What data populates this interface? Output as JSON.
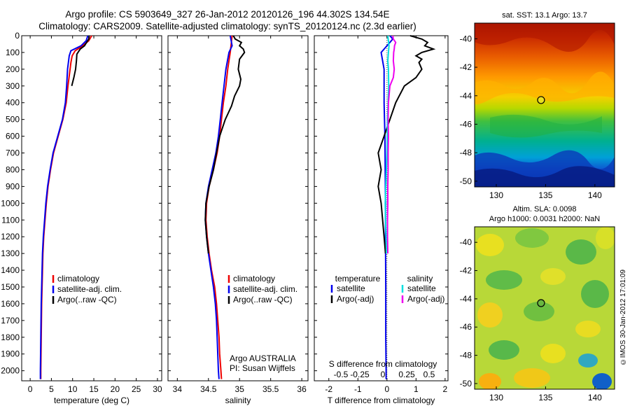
{
  "header": {
    "title": "Argo profile: CS 5903649_327 26-Jan-2012 20120126_196 44.302S 134.54E",
    "subtitle": "Climatology: CARS2009. Satellite-adjusted climatology: synTS_20120124.nc (2.3d earlier)"
  },
  "stamp": "©IMOS 30-Jan-2012 17:01:09",
  "colors": {
    "climatology": "#ee0000",
    "satellite": "#0000ee",
    "argo": "#000000",
    "salinity_satellite": "#00e0e0",
    "salinity_argo": "#ee00ee"
  },
  "chart_data": [
    {
      "type": "line",
      "name": "temperature",
      "xlabel": "temperature (deg C)",
      "xlim": [
        -2,
        31
      ],
      "xticks": [
        "0",
        "5",
        "10",
        "15",
        "20",
        "25",
        "30"
      ],
      "xtick_values": [
        0,
        5,
        10,
        15,
        20,
        25,
        30
      ],
      "ylim": [
        0,
        2060
      ],
      "yticks": [
        0,
        100,
        200,
        300,
        400,
        500,
        600,
        700,
        800,
        900,
        1000,
        1100,
        1200,
        1300,
        1400,
        1500,
        1600,
        1700,
        1800,
        1900,
        2000
      ],
      "legend": [
        "climatology",
        "satellite-adj. clim.",
        "Argo(..raw -QC)"
      ],
      "series": [
        {
          "name": "climatology",
          "color": "#ee0000",
          "y": [
            0,
            30,
            60,
            90,
            120,
            160,
            200,
            300,
            400,
            500,
            600,
            700,
            800,
            900,
            1000,
            1100,
            1200,
            1300,
            1400,
            1600,
            1800,
            2000,
            2050
          ],
          "x": [
            14.5,
            13.8,
            12.4,
            10.6,
            9.9,
            9.6,
            9.4,
            8.9,
            8.5,
            7.7,
            6.6,
            5.5,
            4.8,
            4.2,
            3.8,
            3.5,
            3.2,
            3.0,
            2.9,
            2.7,
            2.6,
            2.5,
            2.5
          ]
        },
        {
          "name": "satellite-adj. clim.",
          "color": "#0000ee",
          "y": [
            0,
            30,
            60,
            90,
            120,
            160,
            200,
            300,
            400,
            500,
            600,
            700,
            800,
            900,
            1000,
            1100,
            1200,
            1300,
            1400,
            1600,
            1800,
            2000,
            2050
          ],
          "x": [
            13.6,
            13.2,
            12.0,
            9.6,
            9.2,
            9.0,
            8.8,
            8.6,
            8.3,
            7.6,
            6.5,
            5.4,
            4.7,
            4.1,
            3.7,
            3.4,
            3.1,
            2.9,
            2.8,
            2.6,
            2.5,
            2.4,
            2.4
          ]
        },
        {
          "name": "Argo(..raw -QC)",
          "color": "#000000",
          "y": [
            0,
            20,
            40,
            60,
            80,
            110,
            150,
            200,
            250,
            300
          ],
          "x": [
            13.9,
            13.8,
            13.3,
            12.8,
            11.8,
            11.0,
            10.9,
            10.7,
            10.3,
            9.8
          ]
        }
      ]
    },
    {
      "type": "line",
      "name": "salinity",
      "xlabel": "salinity",
      "xlim": [
        33.85,
        36.1
      ],
      "xticks": [
        "34",
        "34.5",
        "35",
        "35.5",
        "36"
      ],
      "xtick_values": [
        34,
        34.5,
        35,
        35.5,
        36
      ],
      "ylim": [
        0,
        2060
      ],
      "legend": [
        "climatology",
        "satellite-adj. clim.",
        "Argo(..raw -QC)"
      ],
      "annotation": [
        "Argo AUSTRALIA",
        "PI: Susan Wijffels"
      ],
      "series": [
        {
          "name": "climatology",
          "color": "#ee0000",
          "y": [
            0,
            100,
            200,
            300,
            400,
            500,
            600,
            700,
            800,
            900,
            1000,
            1100,
            1200,
            1300,
            1400,
            1500,
            1600,
            1700,
            1800,
            1900,
            2000,
            2050
          ],
          "x": [
            34.88,
            34.85,
            34.81,
            34.78,
            34.74,
            34.71,
            34.68,
            34.64,
            34.58,
            34.51,
            34.47,
            34.46,
            34.48,
            34.51,
            34.55,
            34.6,
            34.63,
            34.65,
            34.67,
            34.68,
            34.7,
            34.71
          ]
        },
        {
          "name": "satellite-adj. clim.",
          "color": "#0000ee",
          "y": [
            0,
            60,
            100,
            200,
            300,
            400,
            500,
            600,
            700,
            800,
            900,
            1000,
            1100,
            1200,
            1300,
            1400,
            1500,
            1600,
            1700,
            1800,
            1900,
            2000,
            2050
          ],
          "x": [
            34.85,
            34.88,
            34.83,
            34.78,
            34.75,
            34.72,
            34.69,
            34.66,
            34.62,
            34.56,
            34.5,
            34.46,
            34.45,
            34.47,
            34.5,
            34.54,
            34.58,
            34.61,
            34.63,
            34.64,
            34.65,
            34.66,
            34.67
          ]
        },
        {
          "name": "Argo(..raw -QC)",
          "color": "#000000",
          "y": [
            0,
            20,
            40,
            60,
            80,
            100,
            140,
            200,
            260,
            300,
            360,
            420,
            500,
            600,
            700,
            800,
            900,
            1000,
            1100,
            1200,
            1300
          ],
          "x": [
            34.9,
            34.93,
            35.03,
            35.0,
            35.06,
            35.08,
            35.0,
            34.98,
            35.02,
            35.0,
            34.92,
            34.87,
            34.77,
            34.68,
            34.63,
            34.58,
            34.51,
            34.46,
            34.45,
            34.47,
            34.5
          ]
        }
      ]
    },
    {
      "type": "line",
      "name": "difference",
      "xlabel": "T difference from climatology",
      "xlabel_top": "S difference from climatology",
      "xlim": [
        -2.5,
        2.1
      ],
      "xticks": [
        "-2",
        "-1",
        "0",
        "1",
        "2"
      ],
      "xtick_values": [
        -2,
        -1,
        0,
        1,
        2
      ],
      "xticks_top": [
        "-0.5",
        "-0.25",
        "0",
        "0.25",
        "0.5"
      ],
      "ylim": [
        0,
        2060
      ],
      "legend_temperature": {
        "title": "temperature",
        "items": [
          "satellite",
          "Argo(-adj)"
        ]
      },
      "legend_salinity": {
        "title": "salinity",
        "items": [
          "satellite",
          "Argo(-adj)"
        ]
      },
      "series": [
        {
          "name": "temperature satellite",
          "color": "#0000ee",
          "y": [
            0,
            20,
            40,
            60,
            80,
            100,
            150,
            200,
            400,
            600,
            800,
            1000,
            1200,
            1500,
            1800,
            2000,
            2050
          ],
          "x": [
            0.1,
            0.2,
            0.1,
            0.0,
            -0.1,
            -0.2,
            -0.15,
            -0.1,
            -0.1,
            -0.07,
            -0.06,
            -0.05,
            -0.05,
            -0.04,
            -0.04,
            -0.03,
            -0.03
          ]
        },
        {
          "name": "temperature Argo(-adj)",
          "color": "#000000",
          "y": [
            0,
            10,
            20,
            40,
            60,
            80,
            100,
            120,
            140,
            160,
            200,
            250,
            300,
            400,
            500,
            600,
            700,
            800,
            900,
            1000,
            1100,
            1200,
            1300
          ],
          "x": [
            0.8,
            1.0,
            1.2,
            1.4,
            1.3,
            1.6,
            1.2,
            1.0,
            1.2,
            1.1,
            1.2,
            1.0,
            0.6,
            0.3,
            0.1,
            -0.1,
            -0.3,
            -0.2,
            -0.3,
            -0.2,
            -0.15,
            -0.1,
            -0.05
          ]
        },
        {
          "name": "salinity satellite",
          "color": "#00e0e0",
          "y": [
            0,
            30,
            60,
            100,
            150,
            200,
            300,
            400,
            500,
            600,
            700,
            800,
            900,
            1000,
            1100,
            1200,
            1300
          ],
          "x": [
            0.03,
            0.05,
            0.07,
            0.05,
            0.03,
            0.05,
            0.06,
            0.04,
            0.02,
            0.01,
            0.0,
            -0.02,
            -0.04,
            -0.06,
            -0.05,
            -0.03,
            -0.02
          ]
        },
        {
          "name": "salinity Argo(-adj)",
          "color": "#ee00ee",
          "y": [
            0,
            20,
            40,
            60,
            80,
            100,
            150,
            200,
            250,
            300,
            400,
            500,
            600,
            700,
            800,
            900,
            1000,
            1100,
            1200,
            1300
          ],
          "x": [
            0.2,
            0.22,
            0.3,
            0.26,
            0.25,
            0.23,
            0.22,
            0.25,
            0.22,
            0.1,
            0.05,
            0.04,
            0.05,
            0.04,
            0.04,
            0.03,
            0.03,
            0.02,
            0.02,
            0.03
          ]
        }
      ]
    },
    {
      "type": "heatmap",
      "name": "sst_map",
      "title": "sat. SST: 13.1  Argo: 13.7",
      "xlim": [
        127.8,
        142.0
      ],
      "ylim": [
        -50.4,
        -38.9
      ],
      "xticks": [
        "130",
        "135",
        "140"
      ],
      "xtick_values": [
        130,
        135,
        140
      ],
      "yticks": [
        "-40",
        "-42",
        "-44",
        "-46",
        "-48",
        "-50"
      ],
      "ytick_values": [
        -40,
        -42,
        -44,
        -46,
        -48,
        -50
      ],
      "marker": {
        "lon": 134.54,
        "lat": -44.302
      }
    },
    {
      "type": "heatmap",
      "name": "sla_map",
      "title_line1": "Altim. SLA: 0.0098",
      "title_line2": "Argo h1000: 0.0031 h2000: NaN",
      "xlim": [
        127.8,
        142.0
      ],
      "ylim": [
        -50.4,
        -38.9
      ],
      "xticks": [
        "130",
        "135",
        "140"
      ],
      "xtick_values": [
        130,
        135,
        140
      ],
      "yticks": [
        "-40",
        "-42",
        "-44",
        "-46",
        "-48",
        "-50"
      ],
      "ytick_values": [
        -40,
        -42,
        -44,
        -46,
        -48,
        -50
      ],
      "marker": {
        "lon": 134.54,
        "lat": -44.302
      }
    }
  ]
}
